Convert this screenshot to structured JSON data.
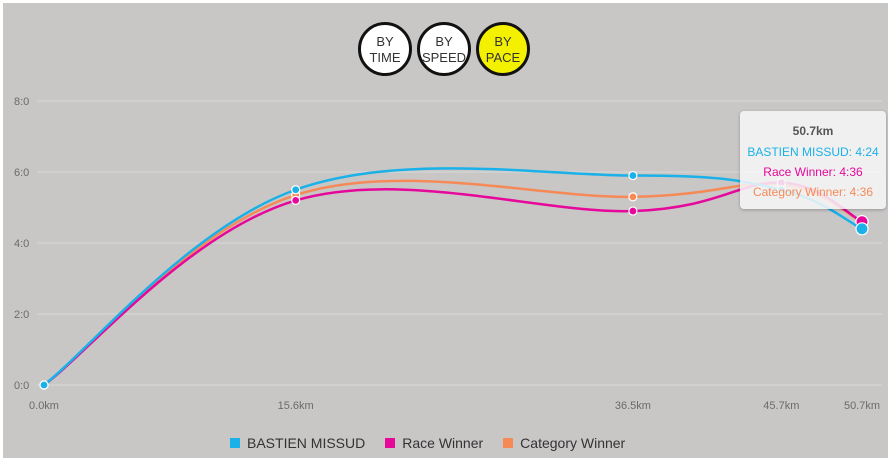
{
  "toggles": [
    {
      "label": "BY\nTIME",
      "active": false
    },
    {
      "label": "BY\nSPEED",
      "active": false
    },
    {
      "label": "BY\nPACE",
      "active": true
    }
  ],
  "colors": {
    "background": "#c9c6c6",
    "grid": "#d9d9d9",
    "axis_text": "#6b6b6b",
    "active_toggle": "#f3f100"
  },
  "tooltip": {
    "title": "50.7km",
    "lines": [
      {
        "text": "BASTIEN MISSUD: 4:24",
        "color": "#19b1e8"
      },
      {
        "text": "Race Winner: 4:36",
        "color": "#e6079b"
      },
      {
        "text": "Category Winner: 4:36",
        "color": "#f58a57"
      }
    ]
  },
  "chart_data": {
    "type": "line",
    "categories": [
      "0.0km",
      "15.6km",
      "36.5km",
      "45.7km",
      "50.7km"
    ],
    "x": [
      0,
      15.6,
      36.5,
      45.7,
      50.7
    ],
    "ylim": [
      0,
      8
    ],
    "yticks": [
      "0:0",
      "2:0",
      "4:0",
      "6:0",
      "8:0"
    ],
    "ytick_values": [
      0,
      2,
      4,
      6,
      8
    ],
    "grid": true,
    "legend_position": "bottom",
    "series": [
      {
        "name": "BASTIEN MISSUD",
        "color": "#19b1e8",
        "values": [
          0,
          5.5,
          5.9,
          5.5,
          4.4
        ]
      },
      {
        "name": "Race Winner",
        "color": "#e6079b",
        "values": [
          0,
          5.2,
          4.9,
          5.7,
          4.6
        ]
      },
      {
        "name": "Category Winner",
        "color": "#f58a57",
        "values": [
          0,
          5.35,
          5.3,
          5.65,
          4.6
        ]
      }
    ]
  }
}
